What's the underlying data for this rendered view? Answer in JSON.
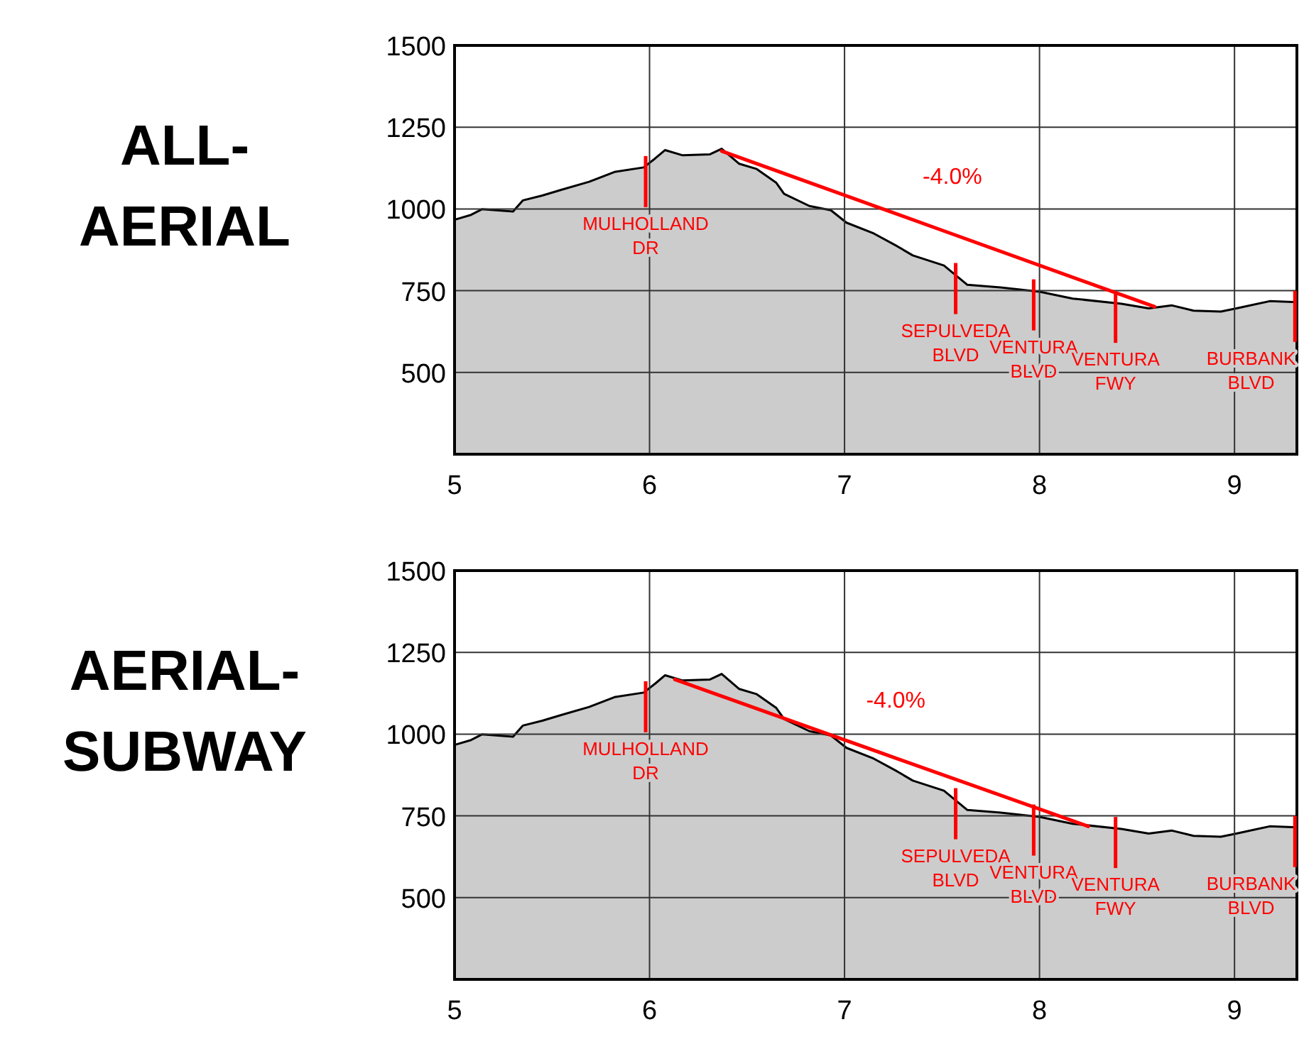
{
  "chart_data": [
    {
      "type": "area",
      "title": "ALL-\nAERIAL",
      "x": [
        5.0,
        5.085,
        5.14,
        5.3,
        5.35,
        5.45,
        5.55,
        5.69,
        5.82,
        5.97,
        6.03,
        6.08,
        6.17,
        6.31,
        6.37,
        6.46,
        6.55,
        6.65,
        6.69,
        6.82,
        6.93,
        7.01,
        7.15,
        7.27,
        7.35,
        7.51,
        7.63,
        7.8,
        8.0,
        8.17,
        8.42,
        8.56,
        8.68,
        8.79,
        8.93,
        9.01,
        9.18,
        9.32
      ],
      "series": [
        {
          "color": "#cccccc",
          "values": [
            967,
            982,
            999,
            992,
            1026,
            1041,
            1059,
            1083,
            1113,
            1127,
            1155,
            1180,
            1164,
            1167,
            1184,
            1138,
            1122,
            1080,
            1046,
            1009,
            996,
            958,
            925,
            886,
            858,
            827,
            768,
            760,
            747,
            726,
            710,
            696,
            705,
            689,
            686,
            696,
            718,
            715
          ]
        },
        {
          "type": "line",
          "color": "#ff0000",
          "x": [
            6.37,
            7.48,
            8.59
          ],
          "values": [
            1177,
            939,
            701
          ]
        }
      ],
      "xlim": [
        5,
        9.32
      ],
      "ylim": [
        250,
        1500
      ],
      "xticks": [
        5,
        6,
        7,
        8,
        9
      ],
      "yticks": [
        500,
        750,
        1000,
        1250,
        1500
      ],
      "grid": true,
      "annotations": [
        "-4.0%",
        {
          "text": "MULHOLLAND\nDR",
          "x": 5.98,
          "y": 1127
        },
        {
          "text": "SEPULVEDA\nBLVD",
          "x": 7.57,
          "y": 800
        },
        {
          "text": "VENTURA\nBLVD",
          "x": 7.97,
          "y": 750
        },
        {
          "text": "VENTURA\nFWY",
          "x": 8.39,
          "y": 712
        },
        {
          "text": "BURBANK\nBLVD",
          "x": 9.31,
          "y": 715
        }
      ]
    },
    {
      "type": "area",
      "title": "AERIAL-\nSUBWAY",
      "x": [
        5.0,
        5.085,
        5.14,
        5.3,
        5.35,
        5.45,
        5.55,
        5.69,
        5.82,
        5.97,
        6.03,
        6.08,
        6.17,
        6.31,
        6.37,
        6.46,
        6.55,
        6.65,
        6.69,
        6.82,
        6.93,
        7.01,
        7.15,
        7.27,
        7.35,
        7.51,
        7.63,
        7.8,
        8.0,
        8.17,
        8.42,
        8.56,
        8.68,
        8.79,
        8.93,
        9.01,
        9.18,
        9.32
      ],
      "series": [
        {
          "color": "#cccccc",
          "values": [
            967,
            982,
            999,
            992,
            1026,
            1041,
            1059,
            1083,
            1113,
            1127,
            1155,
            1180,
            1164,
            1167,
            1184,
            1138,
            1122,
            1080,
            1046,
            1009,
            996,
            958,
            925,
            886,
            858,
            827,
            768,
            760,
            747,
            726,
            710,
            696,
            705,
            689,
            686,
            696,
            718,
            715
          ]
        },
        {
          "type": "line",
          "color": "#ff0000",
          "x": [
            6.13,
            7.19,
            8.25
          ],
          "values": [
            1167,
            942,
            718
          ]
        }
      ],
      "xlim": [
        5,
        9.32
      ],
      "ylim": [
        250,
        1500
      ],
      "xticks": [
        5,
        6,
        7,
        8,
        9
      ],
      "yticks": [
        500,
        750,
        1000,
        1250,
        1500
      ],
      "grid": true,
      "annotations": [
        "-4.0%",
        {
          "text": "MULHOLLAND\nDR",
          "x": 5.98,
          "y": 1127
        },
        {
          "text": "SEPULVEDA\nBLVD",
          "x": 7.57,
          "y": 800
        },
        {
          "text": "VENTURA\nBLVD",
          "x": 7.97,
          "y": 750
        },
        {
          "text": "VENTURA\nFWY",
          "x": 8.39,
          "y": 712
        },
        {
          "text": "BURBANK\nBLVD",
          "x": 9.31,
          "y": 715
        }
      ]
    }
  ]
}
